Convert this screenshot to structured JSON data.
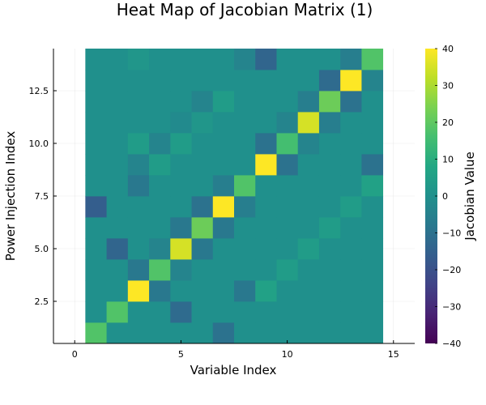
{
  "chart_data": {
    "type": "heatmap",
    "title": "Heat Map of Jacobian Matrix (1)",
    "xlabel": "Variable Index",
    "ylabel": "Power Injection Index",
    "colorbar_label": "Jacobian Value",
    "colormap": "viridis",
    "clim": [
      -40,
      40
    ],
    "xlim": [
      -1,
      16
    ],
    "ylim": [
      0.5,
      14.5
    ],
    "x_ticks": [
      0,
      5,
      10,
      15
    ],
    "x_tick_labels": [
      "0",
      "5",
      "10",
      "15"
    ],
    "y_ticks": [
      2.5,
      5.0,
      7.5,
      10.0,
      12.5
    ],
    "y_tick_labels": [
      "2.5",
      "5.0",
      "7.5",
      "10.0",
      "12.5"
    ],
    "colorbar_ticks": [
      40,
      30,
      20,
      10,
      0,
      -10,
      -20,
      -30,
      -40
    ],
    "colorbar_tick_labels": [
      "40",
      "30",
      "20",
      "10",
      "0",
      "−10",
      "−20",
      "−30",
      "−40"
    ],
    "grid": true,
    "x": [
      1,
      2,
      3,
      4,
      5,
      6,
      7,
      8,
      9,
      10,
      11,
      12,
      13,
      14
    ],
    "y": [
      1,
      2,
      3,
      4,
      5,
      6,
      7,
      8,
      9,
      10,
      11,
      12,
      13,
      14
    ],
    "z": [
      [
        18,
        0,
        0,
        0,
        0,
        0,
        -10,
        0,
        0,
        0,
        0,
        0,
        0,
        0
      ],
      [
        0,
        18,
        0,
        0,
        -12,
        0,
        0,
        0,
        0,
        0,
        0,
        0,
        0,
        0
      ],
      [
        0,
        0,
        40,
        -8,
        0,
        0,
        0,
        -8,
        6,
        0,
        0,
        0,
        0,
        0
      ],
      [
        0,
        0,
        -8,
        18,
        -4,
        0,
        0,
        0,
        0,
        4,
        0,
        0,
        0,
        0
      ],
      [
        0,
        -14,
        0,
        -4,
        35,
        -8,
        0,
        0,
        0,
        0,
        4,
        0,
        0,
        0
      ],
      [
        0,
        0,
        0,
        0,
        -8,
        22,
        -8,
        0,
        0,
        0,
        0,
        4,
        0,
        0
      ],
      [
        -16,
        0,
        0,
        0,
        0,
        -10,
        40,
        -6,
        0,
        0,
        0,
        0,
        4,
        0
      ],
      [
        0,
        0,
        -8,
        0,
        0,
        0,
        -6,
        18,
        0,
        0,
        0,
        0,
        0,
        6
      ],
      [
        0,
        0,
        -4,
        4,
        0,
        0,
        0,
        0,
        40,
        -10,
        0,
        0,
        0,
        -10
      ],
      [
        0,
        0,
        4,
        -4,
        4,
        0,
        0,
        0,
        -10,
        16,
        -4,
        0,
        0,
        0
      ],
      [
        0,
        0,
        0,
        0,
        -2,
        2,
        0,
        0,
        0,
        -4,
        35,
        -6,
        0,
        0
      ],
      [
        0,
        0,
        0,
        0,
        0,
        -4,
        4,
        0,
        0,
        0,
        -6,
        22,
        -10,
        0
      ],
      [
        0,
        0,
        0,
        0,
        0,
        0,
        0,
        0,
        0,
        0,
        0,
        -12,
        40,
        -4
      ],
      [
        0,
        0,
        2,
        0,
        0,
        0,
        0,
        -4,
        -14,
        0,
        0,
        0,
        -6,
        18
      ]
    ]
  }
}
